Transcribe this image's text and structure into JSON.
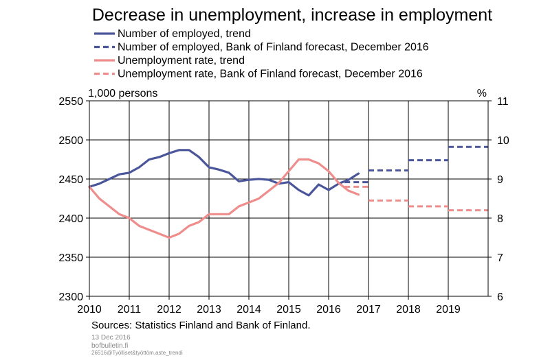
{
  "chart_data": {
    "type": "line",
    "title": "Decrease in unemployment, increase in employment",
    "left_axis": {
      "unit_label": "1,000 persons",
      "range": [
        2300,
        2550
      ],
      "ticks": [
        2550,
        2500,
        2450,
        2400,
        2350,
        2300
      ]
    },
    "right_axis": {
      "unit_label": "%",
      "range": [
        6,
        11
      ],
      "ticks": [
        11,
        10,
        9,
        8,
        7,
        6
      ]
    },
    "x_axis": {
      "range": [
        2010,
        2020
      ],
      "ticks": [
        "2010",
        "2011",
        "2012",
        "2013",
        "2014",
        "2015",
        "2016",
        "2017",
        "2018",
        "2019"
      ]
    },
    "grid": true,
    "legend_position": "top",
    "series": [
      {
        "name": "Number of employed, trend",
        "axis": "left",
        "color": "#4a559a",
        "style": "solid",
        "x": [
          2010.0,
          2010.25,
          2010.5,
          2010.75,
          2011.0,
          2011.25,
          2011.5,
          2011.75,
          2012.0,
          2012.25,
          2012.5,
          2012.75,
          2013.0,
          2013.25,
          2013.5,
          2013.75,
          2014.0,
          2014.25,
          2014.5,
          2014.75,
          2015.0,
          2015.25,
          2015.5,
          2015.75,
          2016.0,
          2016.25,
          2016.5,
          2016.75
        ],
        "values": [
          2440,
          2444,
          2450,
          2456,
          2458,
          2465,
          2475,
          2478,
          2483,
          2487,
          2487,
          2478,
          2465,
          2462,
          2458,
          2447,
          2449,
          2450,
          2449,
          2444,
          2446,
          2436,
          2429,
          2443,
          2436,
          2444,
          2449,
          2457
        ]
      },
      {
        "name": "Number of employed, Bank of Finland forecast, December 2016",
        "axis": "left",
        "color": "#4a559a",
        "style": "dashed",
        "segments": [
          {
            "x": [
              2016.4,
              2017.0
            ],
            "values": [
              2446,
              2446
            ]
          },
          {
            "x": [
              2017.0,
              2018.0
            ],
            "values": [
              2461,
              2461
            ]
          },
          {
            "x": [
              2018.0,
              2019.0
            ],
            "values": [
              2474,
              2474
            ]
          },
          {
            "x": [
              2019.0,
              2020.0
            ],
            "values": [
              2491,
              2491
            ]
          }
        ]
      },
      {
        "name": "Unemployment rate, trend",
        "axis": "right",
        "color": "#ef8c8c",
        "style": "solid",
        "x": [
          2010.0,
          2010.25,
          2010.5,
          2010.75,
          2011.0,
          2011.25,
          2011.5,
          2011.75,
          2012.0,
          2012.25,
          2012.5,
          2012.75,
          2013.0,
          2013.25,
          2013.5,
          2013.75,
          2014.0,
          2014.25,
          2014.5,
          2014.75,
          2015.0,
          2015.25,
          2015.5,
          2015.75,
          2016.0,
          2016.25,
          2016.5,
          2016.75
        ],
        "values": [
          8.8,
          8.5,
          8.3,
          8.1,
          8.0,
          7.8,
          7.7,
          7.6,
          7.5,
          7.6,
          7.8,
          7.9,
          8.1,
          8.1,
          8.1,
          8.3,
          8.4,
          8.5,
          8.7,
          8.9,
          9.2,
          9.5,
          9.5,
          9.4,
          9.2,
          8.9,
          8.7,
          8.6
        ]
      },
      {
        "name": "Unemployment rate, Bank of Finland forecast, December 2016",
        "axis": "right",
        "color": "#ef8c8c",
        "style": "dashed",
        "segments": [
          {
            "x": [
              2016.4,
              2017.0
            ],
            "values": [
              8.8,
              8.8
            ]
          },
          {
            "x": [
              2017.0,
              2018.0
            ],
            "values": [
              8.45,
              8.45
            ]
          },
          {
            "x": [
              2018.0,
              2019.0
            ],
            "values": [
              8.3,
              8.3
            ]
          },
          {
            "x": [
              2019.0,
              2020.0
            ],
            "values": [
              8.2,
              8.2
            ]
          }
        ]
      }
    ]
  },
  "footer": {
    "source": "Sources: Statistics Finland and Bank of Finland.",
    "date": "13 Dec 2016",
    "site": "bofbulletin.fi",
    "code": "26516@Työlliset&työttöm.aste_trendi"
  }
}
